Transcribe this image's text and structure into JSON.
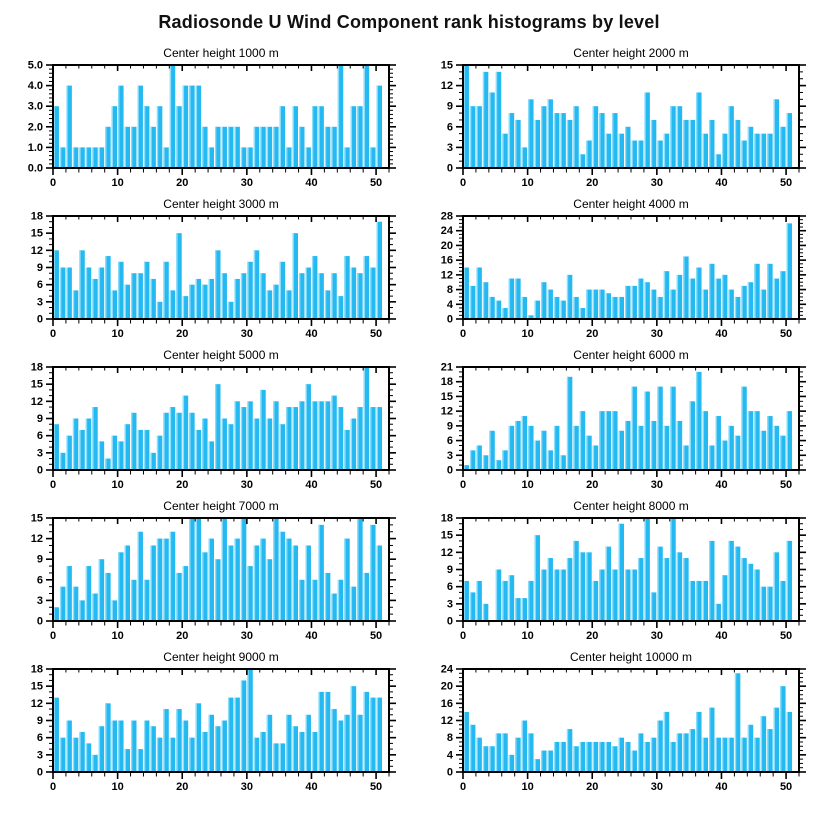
{
  "title": "Radiosonde U Wind Component rank histograms by level",
  "style": {
    "bar_color": "#25B9F2",
    "bar_highlight": "#8EDDF9",
    "axis_color": "#000000",
    "background": "#FFFFFF"
  },
  "chart_data": [
    {
      "type": "bar",
      "title": "Center height 1000 m",
      "xlabel": "",
      "ylabel": "",
      "xlim": [
        0,
        52
      ],
      "ylim": [
        0,
        5
      ],
      "ytick_step": 1,
      "y_minor_step": 0.2,
      "y_label_decimals": 1,
      "x_major_ticks": [
        0,
        10,
        20,
        30,
        40,
        50
      ],
      "x_minor_step": 2,
      "n_bins": 51,
      "grid": false,
      "legend": "none",
      "values": [
        3,
        1,
        4,
        1,
        1,
        1,
        1,
        1,
        2,
        3,
        4,
        2,
        2,
        4,
        3,
        2,
        3,
        1,
        5,
        3,
        4,
        4,
        4,
        2,
        1,
        2,
        2,
        2,
        2,
        1,
        1,
        2,
        2,
        2,
        2,
        3,
        1,
        3,
        2,
        1,
        3,
        3,
        2,
        2,
        5,
        1,
        3,
        3,
        5,
        1,
        4
      ]
    },
    {
      "type": "bar",
      "title": "Center height 2000 m",
      "xlabel": "",
      "ylabel": "",
      "xlim": [
        0,
        52
      ],
      "ylim": [
        0,
        15
      ],
      "ytick_step": 3,
      "y_minor_step": 1,
      "y_label_decimals": 0,
      "x_major_ticks": [
        0,
        10,
        20,
        30,
        40,
        50
      ],
      "x_minor_step": 2,
      "n_bins": 51,
      "grid": false,
      "legend": "none",
      "values": [
        15,
        9,
        9,
        14,
        11,
        14,
        5,
        8,
        7,
        3,
        10,
        7,
        9,
        10,
        8,
        8,
        7,
        9,
        2,
        4,
        9,
        8,
        5,
        8,
        5,
        6,
        4,
        4,
        11,
        7,
        4,
        5,
        9,
        9,
        7,
        7,
        11,
        5,
        7,
        2,
        5,
        9,
        7,
        4,
        6,
        5,
        5,
        5,
        10,
        6,
        8
      ]
    },
    {
      "type": "bar",
      "title": "Center height 3000 m",
      "xlabel": "",
      "ylabel": "",
      "xlim": [
        0,
        52
      ],
      "ylim": [
        0,
        18
      ],
      "ytick_step": 3,
      "y_minor_step": 1,
      "y_label_decimals": 0,
      "x_major_ticks": [
        0,
        10,
        20,
        30,
        40,
        50
      ],
      "x_minor_step": 2,
      "n_bins": 51,
      "grid": false,
      "legend": "none",
      "values": [
        12,
        9,
        9,
        5,
        12,
        9,
        7,
        9,
        11,
        5,
        10,
        6,
        8,
        8,
        10,
        7,
        3,
        10,
        5,
        15,
        4,
        6,
        7,
        6,
        7,
        12,
        8,
        3,
        7,
        8,
        10,
        12,
        8,
        5,
        6,
        10,
        5,
        15,
        8,
        9,
        11,
        8,
        5,
        8,
        4,
        11,
        9,
        8,
        11,
        9,
        17
      ]
    },
    {
      "type": "bar",
      "title": "Center height 4000 m",
      "xlabel": "",
      "ylabel": "",
      "xlim": [
        0,
        52
      ],
      "ylim": [
        0,
        28
      ],
      "ytick_step": 4,
      "y_minor_step": 1,
      "y_label_decimals": 0,
      "x_major_ticks": [
        0,
        10,
        20,
        30,
        40,
        50
      ],
      "x_minor_step": 2,
      "n_bins": 51,
      "grid": false,
      "legend": "none",
      "values": [
        14,
        9,
        14,
        10,
        6,
        5,
        3,
        11,
        11,
        6,
        1,
        5,
        10,
        8,
        6,
        5,
        12,
        6,
        3,
        8,
        8,
        8,
        7,
        6,
        6,
        9,
        9,
        11,
        10,
        8,
        6,
        13,
        8,
        12,
        17,
        11,
        14,
        8,
        15,
        11,
        12,
        8,
        6,
        9,
        10,
        15,
        8,
        15,
        11,
        13,
        26
      ]
    },
    {
      "type": "bar",
      "title": "Center height 5000 m",
      "xlabel": "",
      "ylabel": "",
      "xlim": [
        0,
        52
      ],
      "ylim": [
        0,
        18
      ],
      "ytick_step": 3,
      "y_minor_step": 1,
      "y_label_decimals": 0,
      "x_major_ticks": [
        0,
        10,
        20,
        30,
        40,
        50
      ],
      "x_minor_step": 2,
      "n_bins": 51,
      "grid": false,
      "legend": "none",
      "values": [
        8,
        3,
        6,
        9,
        7,
        9,
        11,
        5,
        2,
        6,
        5,
        8,
        10,
        7,
        7,
        3,
        6,
        10,
        11,
        10,
        13,
        10,
        7,
        9,
        5,
        15,
        9,
        8,
        12,
        11,
        12,
        9,
        14,
        9,
        12,
        8,
        11,
        11,
        12,
        15,
        12,
        12,
        12,
        13,
        11,
        7,
        9,
        11,
        18,
        11,
        11
      ]
    },
    {
      "type": "bar",
      "title": "Center height 6000 m",
      "xlabel": "",
      "ylabel": "",
      "xlim": [
        0,
        52
      ],
      "ylim": [
        0,
        21
      ],
      "ytick_step": 3,
      "y_minor_step": 1,
      "y_label_decimals": 0,
      "x_major_ticks": [
        0,
        10,
        20,
        30,
        40,
        50
      ],
      "x_minor_step": 2,
      "n_bins": 51,
      "grid": false,
      "legend": "none",
      "values": [
        1,
        4,
        5,
        3,
        8,
        2,
        4,
        9,
        10,
        11,
        9,
        6,
        8,
        4,
        9,
        3,
        19,
        9,
        12,
        7,
        5,
        12,
        12,
        12,
        8,
        10,
        17,
        9,
        16,
        10,
        17,
        9,
        17,
        10,
        5,
        14,
        20,
        12,
        5,
        11,
        6,
        9,
        7,
        17,
        12,
        12,
        8,
        11,
        9,
        7,
        12
      ]
    },
    {
      "type": "bar",
      "title": "Center height 7000 m",
      "xlabel": "",
      "ylabel": "",
      "xlim": [
        0,
        52
      ],
      "ylim": [
        0,
        15
      ],
      "ytick_step": 3,
      "y_minor_step": 1,
      "y_label_decimals": 0,
      "x_major_ticks": [
        0,
        10,
        20,
        30,
        40,
        50
      ],
      "x_minor_step": 2,
      "n_bins": 51,
      "grid": false,
      "legend": "none",
      "values": [
        2,
        5,
        8,
        5,
        3,
        8,
        4,
        9,
        7,
        3,
        10,
        11,
        6,
        13,
        6,
        11,
        12,
        12,
        13,
        7,
        8,
        15,
        15,
        10,
        12,
        9,
        15,
        11,
        12,
        15,
        8,
        11,
        12,
        9,
        15,
        13,
        12,
        11,
        6,
        11,
        6,
        14,
        7,
        4,
        6,
        12,
        5,
        15,
        7,
        14,
        11
      ]
    },
    {
      "type": "bar",
      "title": "Center height 8000 m",
      "xlabel": "",
      "ylabel": "",
      "xlim": [
        0,
        52
      ],
      "ylim": [
        0,
        18
      ],
      "ytick_step": 3,
      "y_minor_step": 1,
      "y_label_decimals": 0,
      "x_major_ticks": [
        0,
        10,
        20,
        30,
        40,
        50
      ],
      "x_minor_step": 2,
      "n_bins": 51,
      "grid": false,
      "legend": "none",
      "values": [
        7,
        5,
        7,
        3,
        0,
        9,
        7,
        8,
        4,
        4,
        7,
        15,
        9,
        11,
        9,
        9,
        11,
        14,
        12,
        12,
        7,
        9,
        13,
        9,
        17,
        9,
        9,
        11,
        18,
        5,
        13,
        11,
        18,
        12,
        11,
        7,
        7,
        7,
        14,
        3,
        8,
        14,
        13,
        11,
        10,
        9,
        6,
        6,
        12,
        7,
        14
      ]
    },
    {
      "type": "bar",
      "title": "Center height 9000 m",
      "xlabel": "",
      "ylabel": "",
      "xlim": [
        0,
        52
      ],
      "ylim": [
        0,
        18
      ],
      "ytick_step": 3,
      "y_minor_step": 1,
      "y_label_decimals": 0,
      "x_major_ticks": [
        0,
        10,
        20,
        30,
        40,
        50
      ],
      "x_minor_step": 2,
      "n_bins": 51,
      "grid": false,
      "legend": "none",
      "values": [
        13,
        6,
        9,
        6,
        7,
        5,
        3,
        8,
        12,
        9,
        9,
        4,
        9,
        4,
        9,
        8,
        6,
        11,
        6,
        11,
        9,
        6,
        12,
        7,
        10,
        8,
        9,
        13,
        13,
        16,
        18,
        6,
        7,
        10,
        5,
        5,
        10,
        8,
        7,
        10,
        7,
        14,
        14,
        11,
        9,
        10,
        15,
        10,
        14,
        13,
        13
      ]
    },
    {
      "type": "bar",
      "title": "Center height 10000 m",
      "xlabel": "",
      "ylabel": "",
      "xlim": [
        0,
        52
      ],
      "ylim": [
        0,
        24
      ],
      "ytick_step": 4,
      "y_minor_step": 1,
      "y_label_decimals": 0,
      "x_major_ticks": [
        0,
        10,
        20,
        30,
        40,
        50
      ],
      "x_minor_step": 2,
      "n_bins": 51,
      "grid": false,
      "legend": "none",
      "values": [
        14,
        11,
        8,
        6,
        6,
        9,
        9,
        4,
        8,
        12,
        9,
        3,
        5,
        5,
        7,
        7,
        10,
        6,
        7,
        7,
        7,
        7,
        7,
        6,
        8,
        7,
        5,
        9,
        7,
        8,
        12,
        14,
        7,
        9,
        9,
        10,
        14,
        8,
        15,
        8,
        8,
        8,
        23,
        8,
        11,
        8,
        13,
        10,
        15,
        20,
        14
      ]
    }
  ]
}
